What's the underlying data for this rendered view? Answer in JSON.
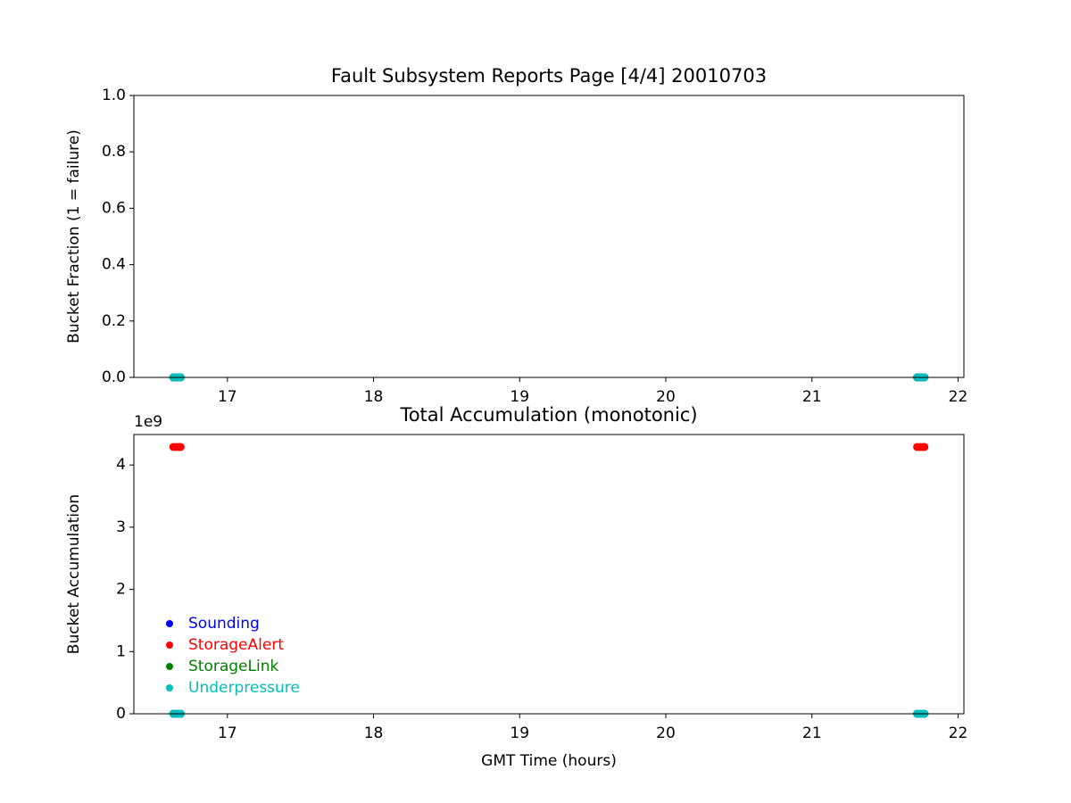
{
  "chart_data": [
    {
      "type": "scatter",
      "title": "Fault Subsystem Reports Page [4/4] 20010703",
      "y_label": "Bucket Fraction (1 = failure)",
      "x": [
        16.63,
        16.65,
        16.67,
        16.68,
        21.72,
        21.74,
        21.76,
        21.77
      ],
      "series": [
        {
          "name": "Sounding",
          "color": "#0000ff",
          "values": [
            0,
            0,
            0,
            0,
            0,
            0,
            0,
            0
          ]
        },
        {
          "name": "StorageAlert",
          "color": "#ff0000",
          "values": [
            0,
            0,
            0,
            0,
            0,
            0,
            0,
            0
          ]
        },
        {
          "name": "StorageLink",
          "color": "#008000",
          "values": [
            0,
            0,
            0,
            0,
            0,
            0,
            0,
            0
          ]
        },
        {
          "name": "Underpressure",
          "color": "#00bfbf",
          "values": [
            0,
            0,
            0,
            0,
            0,
            0,
            0,
            0
          ]
        }
      ],
      "xlim": [
        16.36,
        22.04
      ],
      "xticks": [
        17,
        18,
        19,
        20,
        21,
        22
      ],
      "ylim": [
        0,
        1
      ],
      "yticks": [
        {
          "value": 0,
          "label": "0.0"
        },
        0.2,
        0.4,
        0.6,
        0.8,
        {
          "value": 1,
          "label": "1.0"
        }
      ]
    },
    {
      "type": "scatter",
      "title": "Total Accumulation (monotonic)",
      "x_label": "GMT Time (hours)",
      "y_label": "Bucket Accumulation",
      "y_offset_label": "1e9",
      "x": [
        16.63,
        16.65,
        16.67,
        16.68,
        21.72,
        21.74,
        21.76,
        21.77
      ],
      "series": [
        {
          "name": "Sounding",
          "color": "#0000ff",
          "values": [
            0,
            0,
            0,
            0,
            0,
            0,
            0,
            0
          ]
        },
        {
          "name": "StorageAlert",
          "color": "#ff0000",
          "values": [
            4.29,
            4.29,
            4.29,
            4.29,
            4.29,
            4.29,
            4.29,
            4.29
          ]
        },
        {
          "name": "StorageLink",
          "color": "#008000",
          "values": [
            0,
            0,
            0,
            0,
            0,
            0,
            0,
            0
          ]
        },
        {
          "name": "Underpressure",
          "color": "#00bfbf",
          "values": [
            0,
            0,
            0,
            0,
            0,
            0,
            0,
            0
          ]
        }
      ],
      "xlim": [
        16.36,
        22.04
      ],
      "xticks": [
        17,
        18,
        19,
        20,
        21,
        22
      ],
      "ylim": [
        0,
        4.49
      ],
      "yticks": [
        0,
        1,
        2,
        3,
        4
      ],
      "legend": "lower left"
    }
  ]
}
